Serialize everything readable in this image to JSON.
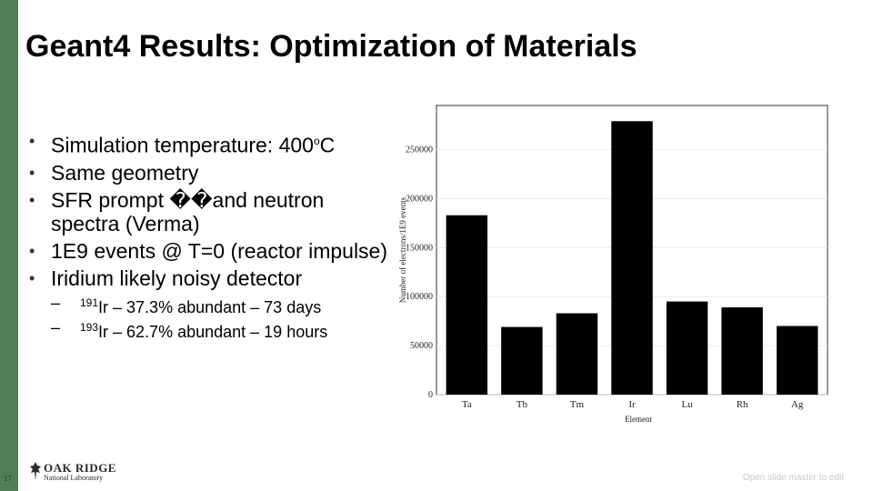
{
  "slide": {
    "title": "Geant4 Results: Optimization of Materials",
    "bullets": [
      {
        "text": "Simulation temperature: 400",
        "sup": "o",
        "tail": "C"
      },
      {
        "text": "Same geometry"
      },
      {
        "text": "SFR prompt ��and neutron spectra (Verma)"
      },
      {
        "text": "1E9 events @ T=0 (reactor impulse)"
      },
      {
        "text": "Iridium likely noisy detector"
      }
    ],
    "subbullets": [
      {
        "dash": "–",
        "sup": "191",
        "text": "Ir – 37.3% abundant – 73 days"
      },
      {
        "dash": "–",
        "sup": "193",
        "text": "Ir – 62.7% abundant – 19 hours"
      }
    ],
    "page_number": "17",
    "logo_top": "OAK RIDGE",
    "logo_bottom": "National Laboratory",
    "footer_link": "Open slide master to edit"
  },
  "chart_data": {
    "type": "bar",
    "categories": [
      "Ta",
      "Tb",
      "Tm",
      "Ir",
      "Lu",
      "Rh",
      "Ag"
    ],
    "values": [
      183000,
      69000,
      83000,
      279000,
      95000,
      89000,
      70000
    ],
    "xlabel": "Element",
    "ylabel": "Number of electrons/1E9 events",
    "ylim": [
      0,
      295000
    ],
    "yticks": [
      0,
      50000,
      100000,
      150000,
      200000,
      250000
    ],
    "ytick_labels": [
      "0",
      "50000",
      "100000",
      "150000",
      "200000",
      "250000"
    ],
    "bar_color": "#000000"
  }
}
